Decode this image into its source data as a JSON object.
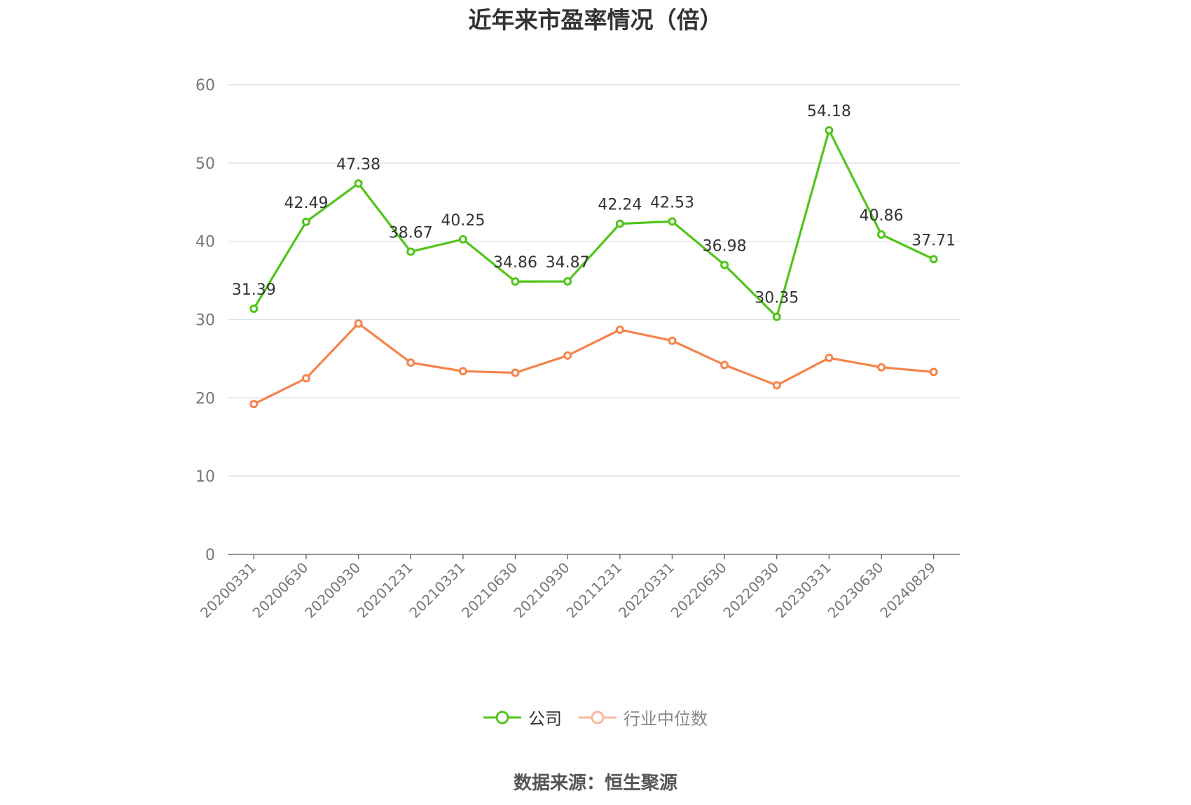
{
  "chart_data": {
    "type": "line",
    "title": "近年来市盈率情况（倍）",
    "source": "数据来源：恒生聚源",
    "categories": [
      "20200331",
      "20200630",
      "20200930",
      "20201231",
      "20210331",
      "20210630",
      "20210930",
      "20211231",
      "20220331",
      "20220630",
      "20220930",
      "20230331",
      "20230630",
      "20240829"
    ],
    "ylim": [
      0,
      60
    ],
    "yticks": [
      "0",
      "10",
      "20",
      "30",
      "40",
      "50",
      "60"
    ],
    "grid": true,
    "legend_position": "bottom-center",
    "series": [
      {
        "name": "公司",
        "color": "#52c41a",
        "values": [
          31.39,
          42.49,
          47.38,
          38.67,
          40.25,
          34.86,
          34.87,
          42.24,
          42.53,
          36.98,
          30.35,
          54.18,
          40.86,
          37.71
        ],
        "labels": [
          "31.39",
          "42.49",
          "47.38",
          "38.67",
          "40.25",
          "34.86",
          "34.87",
          "42.24",
          "42.53",
          "36.98",
          "30.35",
          "54.18",
          "40.86",
          "37.71"
        ]
      },
      {
        "name": "行业中位数",
        "color": "#f5834b",
        "legend_color": "#f9b79a",
        "values": [
          19.2,
          22.5,
          29.5,
          24.5,
          23.4,
          23.2,
          25.4,
          28.7,
          27.3,
          24.2,
          21.6,
          25.1,
          23.9,
          23.3
        ]
      }
    ]
  }
}
